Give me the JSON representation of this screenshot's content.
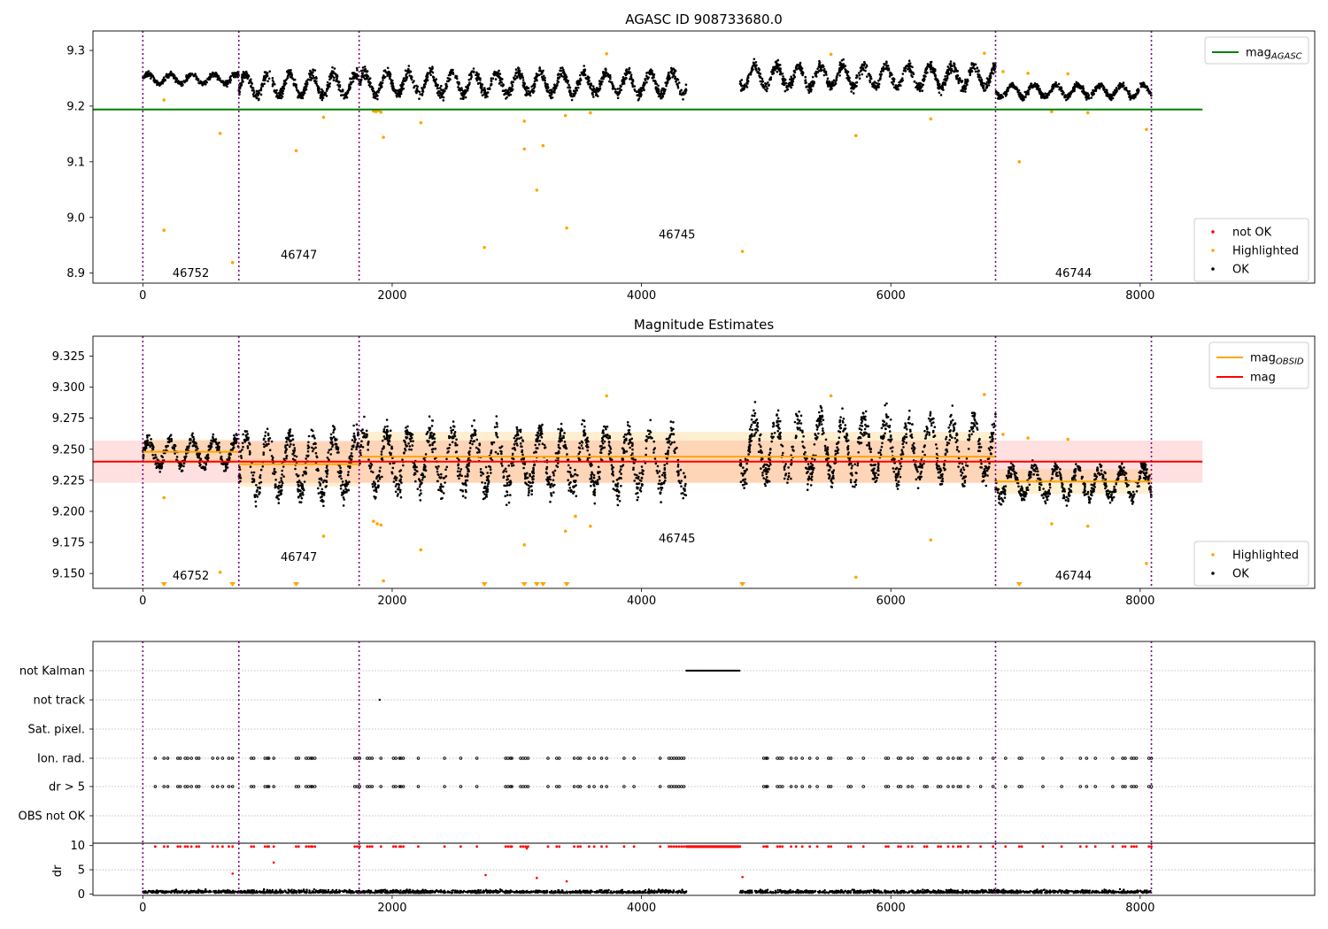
{
  "chart_data": [
    {
      "type": "scatter",
      "title": "AGASC ID 908733680.0",
      "xlabel": "",
      "ylabel": "",
      "xlim": [
        -400,
        9400
      ],
      "ylim": [
        8.882,
        9.335
      ],
      "xticks": [
        0,
        2000,
        4000,
        6000,
        8000
      ],
      "xtick_labels": [
        "0",
        "2000",
        "4000",
        "6000",
        "8000"
      ],
      "yticks": [
        8.9,
        9.0,
        9.1,
        9.2,
        9.3
      ],
      "ytick_labels": [
        "8.9",
        "9.0",
        "9.1",
        "9.2",
        "9.3"
      ],
      "obsid_boundaries": [
        0,
        770,
        1735,
        6840,
        8090
      ],
      "obsid_labels": [
        {
          "text": "46752",
          "x": 385,
          "y": 8.893
        },
        {
          "text": "46747",
          "x": 1252,
          "y": 8.926
        },
        {
          "text": "46745",
          "x": 4285,
          "y": 8.962
        },
        {
          "text": "46744",
          "x": 7465,
          "y": 8.893
        }
      ],
      "segments": [
        {
          "x0": 0,
          "x1": 770,
          "center": 9.249,
          "amplitude": 0.01
        },
        {
          "x0": 770,
          "x1": 1735,
          "center": 9.238,
          "amplitude": 0.022
        },
        {
          "x0": 1735,
          "x1": 4360,
          "center": 9.241,
          "amplitude": 0.022
        },
        {
          "x0": 4790,
          "x1": 6840,
          "center": 9.253,
          "amplitude": 0.022
        },
        {
          "x0": 6840,
          "x1": 8090,
          "center": 9.227,
          "amplitude": 0.012
        }
      ],
      "reference_lines": [
        {
          "name": "mag_AGASC",
          "y": 9.194,
          "x0": -400,
          "x1": 8500,
          "color": "#008000"
        }
      ],
      "highlighted_points": [
        {
          "x": 170,
          "y": 8.977
        },
        {
          "x": 170,
          "y": 9.211
        },
        {
          "x": 620,
          "y": 9.151
        },
        {
          "x": 720,
          "y": 8.919
        },
        {
          "x": 1230,
          "y": 9.12
        },
        {
          "x": 1450,
          "y": 9.18
        },
        {
          "x": 1850,
          "y": 9.191
        },
        {
          "x": 1870,
          "y": 9.19
        },
        {
          "x": 1890,
          "y": 9.192
        },
        {
          "x": 1910,
          "y": 9.189
        },
        {
          "x": 1930,
          "y": 9.144
        },
        {
          "x": 2230,
          "y": 9.17
        },
        {
          "x": 2740,
          "y": 8.946
        },
        {
          "x": 3060,
          "y": 9.173
        },
        {
          "x": 3060,
          "y": 9.123
        },
        {
          "x": 3160,
          "y": 9.049
        },
        {
          "x": 3210,
          "y": 9.129
        },
        {
          "x": 3390,
          "y": 9.183
        },
        {
          "x": 3400,
          "y": 8.981
        },
        {
          "x": 3590,
          "y": 9.188
        },
        {
          "x": 3720,
          "y": 9.294
        },
        {
          "x": 4810,
          "y": 8.939
        },
        {
          "x": 5520,
          "y": 9.293
        },
        {
          "x": 5720,
          "y": 9.147
        },
        {
          "x": 6320,
          "y": 9.177
        },
        {
          "x": 6750,
          "y": 9.295
        },
        {
          "x": 6900,
          "y": 9.262
        },
        {
          "x": 7030,
          "y": 9.1
        },
        {
          "x": 7100,
          "y": 9.259
        },
        {
          "x": 7290,
          "y": 9.19
        },
        {
          "x": 7420,
          "y": 9.258
        },
        {
          "x": 7580,
          "y": 9.188
        },
        {
          "x": 8050,
          "y": 9.158
        }
      ],
      "legend_top": {
        "placement": "top-right",
        "entries": [
          {
            "label": "mag",
            "sub": "AGASC",
            "color": "#008000"
          }
        ]
      },
      "legend_bottom": {
        "placement": "bottom-right",
        "entries": [
          {
            "label": "not OK",
            "color": "#ff0000"
          },
          {
            "label": "Highlighted",
            "color": "#ffa500"
          },
          {
            "label": "OK",
            "color": "#000000"
          }
        ]
      }
    },
    {
      "type": "scatter",
      "title": "Magnitude Estimates",
      "xlabel": "",
      "ylabel": "",
      "xlim": [
        -400,
        9400
      ],
      "ylim": [
        9.138,
        9.341
      ],
      "xticks": [
        0,
        2000,
        4000,
        6000,
        8000
      ],
      "xtick_labels": [
        "0",
        "2000",
        "4000",
        "6000",
        "8000"
      ],
      "yticks": [
        9.15,
        9.175,
        9.2,
        9.225,
        9.25,
        9.275,
        9.3,
        9.325
      ],
      "ytick_labels": [
        "9.150",
        "9.175",
        "9.200",
        "9.225",
        "9.250",
        "9.275",
        "9.300",
        "9.325"
      ],
      "obsid_boundaries": [
        0,
        770,
        1735,
        6840,
        8090
      ],
      "obsid_labels": [
        {
          "text": "46752",
          "x": 385,
          "y": 9.145
        },
        {
          "text": "46747",
          "x": 1252,
          "y": 9.16
        },
        {
          "text": "46745",
          "x": 4285,
          "y": 9.175
        },
        {
          "text": "46744",
          "x": 7465,
          "y": 9.145
        }
      ],
      "segments": [
        {
          "x0": 0,
          "x1": 770,
          "center": 9.247,
          "amplitude": 0.012
        },
        {
          "x0": 770,
          "x1": 1735,
          "center": 9.238,
          "amplitude": 0.025
        },
        {
          "x0": 1735,
          "x1": 4360,
          "center": 9.241,
          "amplitude": 0.025
        },
        {
          "x0": 4790,
          "x1": 6840,
          "center": 9.251,
          "amplitude": 0.025
        },
        {
          "x0": 6840,
          "x1": 8090,
          "center": 9.223,
          "amplitude": 0.013
        }
      ],
      "mag": {
        "y": 9.24,
        "lo": 9.223,
        "hi": 9.257,
        "x0": -400,
        "x1": 8500,
        "color": "#ff0000"
      },
      "mag_obsid": [
        {
          "x0": 0,
          "x1": 770,
          "y": 9.248,
          "lo": 9.238,
          "hi": 9.258
        },
        {
          "x0": 770,
          "x1": 1735,
          "y": 9.238,
          "lo": 9.22,
          "hi": 9.256
        },
        {
          "x0": 1735,
          "x1": 6840,
          "y": 9.244,
          "lo": 9.223,
          "hi": 9.264
        },
        {
          "x0": 6840,
          "x1": 8090,
          "y": 9.224,
          "lo": 9.214,
          "hi": 9.234
        }
      ],
      "highlighted_points": [
        {
          "x": 170,
          "y": 9.211
        },
        {
          "x": 620,
          "y": 9.151
        },
        {
          "x": 1450,
          "y": 9.18
        },
        {
          "x": 1850,
          "y": 9.192
        },
        {
          "x": 1880,
          "y": 9.19
        },
        {
          "x": 1910,
          "y": 9.189
        },
        {
          "x": 1930,
          "y": 9.144
        },
        {
          "x": 2230,
          "y": 9.169
        },
        {
          "x": 3060,
          "y": 9.173
        },
        {
          "x": 3390,
          "y": 9.184
        },
        {
          "x": 3470,
          "y": 9.196
        },
        {
          "x": 3590,
          "y": 9.188
        },
        {
          "x": 3720,
          "y": 9.293
        },
        {
          "x": 5520,
          "y": 9.293
        },
        {
          "x": 5720,
          "y": 9.147
        },
        {
          "x": 6320,
          "y": 9.177
        },
        {
          "x": 6750,
          "y": 9.294
        },
        {
          "x": 6900,
          "y": 9.262
        },
        {
          "x": 7100,
          "y": 9.259
        },
        {
          "x": 7290,
          "y": 9.19
        },
        {
          "x": 7420,
          "y": 9.258
        },
        {
          "x": 7580,
          "y": 9.188
        },
        {
          "x": 8050,
          "y": 9.158
        }
      ],
      "below_range_markers": [
        170,
        720,
        1230,
        2740,
        3060,
        3160,
        3210,
        3400,
        4810,
        7030
      ],
      "legend_top": {
        "placement": "top-right",
        "entries": [
          {
            "label": "mag",
            "sub": "OBSID",
            "color": "#ffa500"
          },
          {
            "label": "mag",
            "sub": "",
            "color": "#ff0000"
          }
        ]
      },
      "legend_bottom": {
        "placement": "bottom-right",
        "entries": [
          {
            "label": "Highlighted",
            "color": "#ffa500"
          },
          {
            "label": "OK",
            "color": "#000000"
          }
        ]
      }
    },
    {
      "type": "scatter",
      "title": "",
      "xlim": [
        -400,
        9400
      ],
      "categories": [
        "not Kalman",
        "not track",
        "Sat. pixel.",
        "Ion. rad.",
        "dr > 5",
        "OBS not OK"
      ],
      "obsid_boundaries": [
        0,
        770,
        1735,
        6840,
        8090
      ],
      "not_kalman_range": [
        4360,
        4790
      ],
      "not_track_x": [
        1900
      ],
      "flag_x": [
        100,
        170,
        200,
        280,
        300,
        340,
        360,
        390,
        430,
        450,
        560,
        600,
        640,
        690,
        720,
        870,
        890,
        980,
        1000,
        1010,
        1050,
        1230,
        1250,
        1310,
        1330,
        1350,
        1360,
        1380,
        1700,
        1720,
        1740,
        1800,
        1820,
        1840,
        1910,
        2010,
        2030,
        2060,
        2070,
        2090,
        2210,
        2420,
        2550,
        2680,
        2910,
        2930,
        2950,
        2960,
        3030,
        3050,
        3070,
        3090,
        3250,
        3320,
        3340,
        3460,
        3490,
        3510,
        3580,
        3620,
        3680,
        3720,
        3860,
        3940,
        4150,
        4220,
        4240,
        4260,
        4280,
        4300,
        4320,
        4340,
        4980,
        5000,
        5010,
        5090,
        5110,
        5130,
        5200,
        5240,
        5290,
        5350,
        5410,
        5500,
        5520,
        5660,
        5680,
        5780,
        5960,
        5980,
        6060,
        6080,
        6140,
        6170,
        6270,
        6290,
        6380,
        6400,
        6460,
        6500,
        6540,
        6560,
        6620,
        6720,
        6820,
        6920,
        7030,
        7050,
        7220,
        7370,
        7520,
        7570,
        7640,
        7780,
        7860,
        7880,
        7930,
        7950,
        7970,
        8070,
        8090
      ],
      "dr_ylabel": "dr",
      "dr_yticks": [
        0,
        5,
        10
      ],
      "dr_ytick_labels": [
        "0",
        "5",
        "10"
      ],
      "dr_ylim": [
        -0.3,
        10.5
      ],
      "dr_outliers": [
        {
          "x": 720,
          "y": 4.2
        },
        {
          "x": 1050,
          "y": 6.5
        },
        {
          "x": 2750,
          "y": 3.9
        },
        {
          "x": 3160,
          "y": 3.3
        },
        {
          "x": 3400,
          "y": 2.6
        },
        {
          "x": 3080,
          "y": 9.4
        },
        {
          "x": 4810,
          "y": 3.5
        }
      ],
      "xticks": [
        0,
        2000,
        4000,
        6000,
        8000
      ],
      "xtick_labels": [
        "0",
        "2000",
        "4000",
        "6000",
        "8000"
      ]
    }
  ],
  "colors": {
    "ok": "#000000",
    "highlighted": "#ffa500",
    "not_ok": "#ff0000",
    "boundary": "#800080",
    "agasc": "#008000",
    "mag": "#ff0000",
    "mag_obsid": "#ffa500"
  }
}
